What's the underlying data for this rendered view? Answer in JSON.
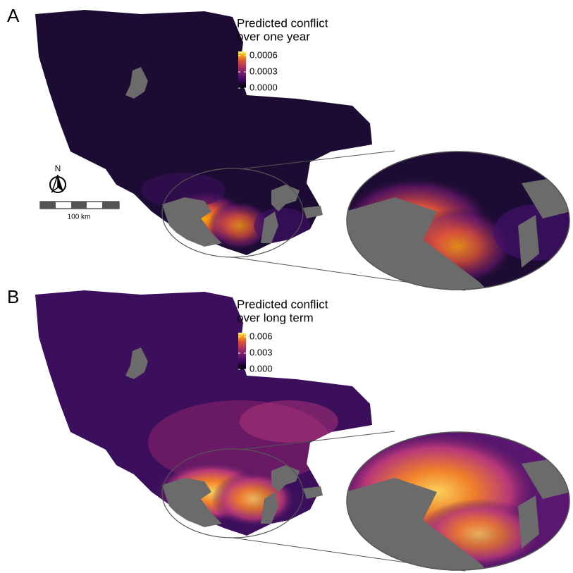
{
  "panels": [
    {
      "label": "A",
      "legend": {
        "title": [
          "Predicted conflict",
          "over one year"
        ],
        "lim": [
          0,
          0.00068
        ],
        "ticks": [
          {
            "value": 0.0006,
            "label": "0.0006"
          },
          {
            "value": 0.0003,
            "label": "0.0003"
          },
          {
            "value": 0,
            "label": "0.0000"
          }
        ]
      }
    },
    {
      "label": "B",
      "legend": {
        "title": [
          "Predicted conflict",
          "over long term"
        ],
        "lim": [
          0,
          0.0068
        ],
        "ticks": [
          {
            "value": 0.006,
            "label": "0.006"
          },
          {
            "value": 0.003,
            "label": "0.003"
          },
          {
            "value": 0,
            "label": "0.000"
          }
        ]
      }
    }
  ],
  "north_label": "N",
  "scale_label": "100 km"
}
